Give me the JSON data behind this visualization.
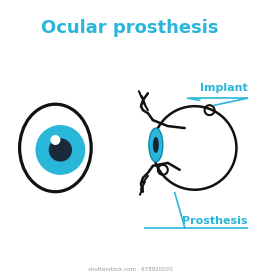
{
  "title": "Ocular prosthesis",
  "title_color": "#29b6d8",
  "title_fontsize": 13,
  "background_color": "#ffffff",
  "line_color": "#111111",
  "blue_color": "#29b6d8",
  "implant_label": "Implant",
  "prosthesis_label": "Prosthesis",
  "watermark": "shutterstock.com · 678920020"
}
